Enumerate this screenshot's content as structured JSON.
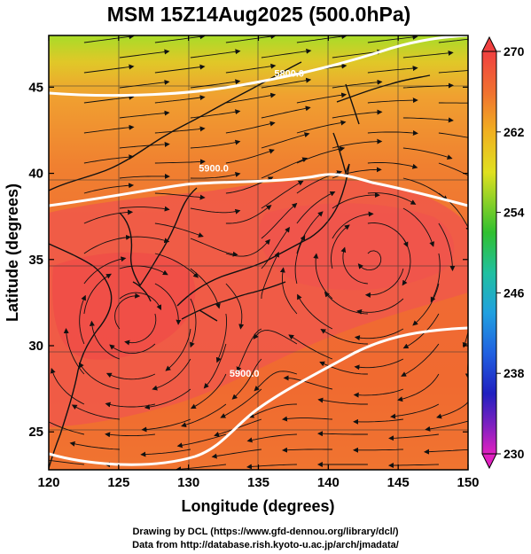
{
  "title": "MSM 15Z14Aug2025 (500.0hPa)",
  "xlabel": "Longitude (degrees)",
  "ylabel": "Latitude  (degrees)",
  "x_ticks": [
    "120",
    "125",
    "130",
    "135",
    "140",
    "145",
    "150"
  ],
  "y_ticks": [
    "25",
    "30",
    "35",
    "40",
    "45"
  ],
  "colorbar_ticks": [
    "270",
    "262",
    "254",
    "246",
    "238",
    "230"
  ],
  "contours": [
    {
      "label": "5800.0",
      "lon": 137.2,
      "lat": 45.6
    },
    {
      "label": "5900.0",
      "lon": 131.8,
      "lat": 40.1
    },
    {
      "label": "5900.0",
      "lon": 134.0,
      "lat": 28.2
    }
  ],
  "credits": {
    "line1": "Drawing by DCL (https://www.gfd-dennou.org/library/dcl/)",
    "line2": "Data from http://database.rish.kyoto-u.ac.jp/arch/jmadata/"
  },
  "colors": {
    "warm_core": "#f05a46",
    "field": "#f07832",
    "north": "#a0dc28",
    "contour": "#ffffff"
  }
}
